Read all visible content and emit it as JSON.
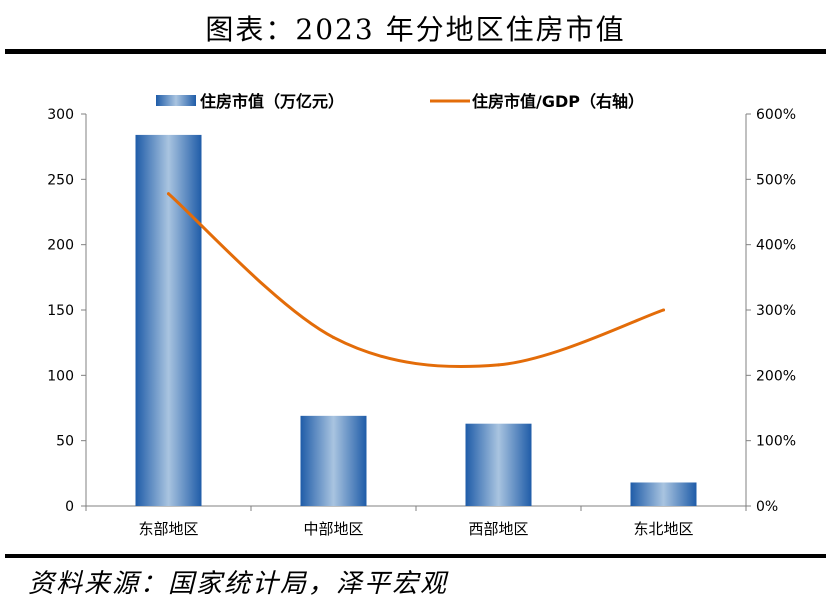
{
  "header": {
    "title": "图表：2023 年分地区住房市值"
  },
  "footer": {
    "source": "资料来源：国家统计局，泽平宏观"
  },
  "chart_data": {
    "type": "bar+line",
    "categories": [
      "东部地区",
      "中部地区",
      "西部地区",
      "东北地区"
    ],
    "series": [
      {
        "name": "住房市值（万亿元）",
        "type": "bar",
        "axis": "left",
        "values": [
          284,
          69,
          63,
          18
        ],
        "color": "#2E6DB4"
      },
      {
        "name": "住房市值/GDP（右轴）",
        "type": "line",
        "axis": "right",
        "values": [
          4.78,
          2.58,
          2.16,
          3.0
        ],
        "color": "#E36C09"
      }
    ],
    "y_left": {
      "min": 0,
      "max": 300,
      "ticks": [
        0,
        50,
        100,
        150,
        200,
        250,
        300
      ]
    },
    "y_right": {
      "min": 0,
      "max": 6,
      "ticks": [
        "0%",
        "100%",
        "200%",
        "300%",
        "400%",
        "500%",
        "600%"
      ]
    },
    "legend": "top-center",
    "grid": false
  }
}
